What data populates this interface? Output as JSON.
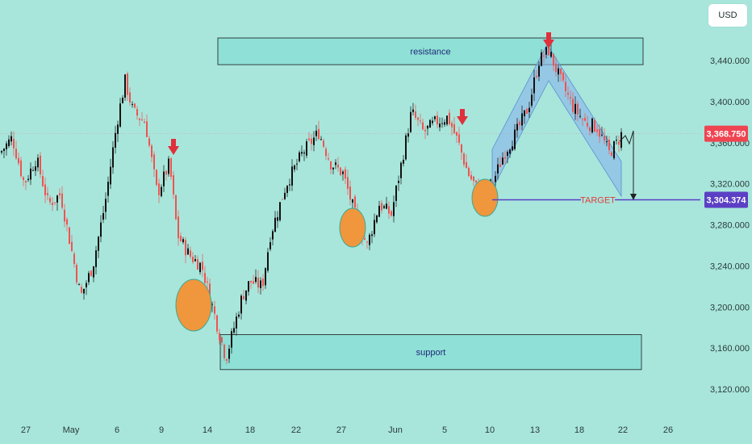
{
  "currency": "USD",
  "colors": {
    "background": "#a8e6dc",
    "up_candle": "#111111",
    "down_candle": "#ef5350",
    "zone_fill": "#8fe0d6",
    "zone_border": "#1a1a1a",
    "circle": "#f0963c",
    "arrow": "#e0303a",
    "channel": "#8ab8e8",
    "target_line": "#5b3fc4",
    "current_price_bg": "#ef4451",
    "target_price_bg": "#5b3fc4"
  },
  "chart_data": {
    "type": "candlestick",
    "y_ticks": [
      "3,440.000",
      "3,400.000",
      "3,360.000",
      "3,320.000",
      "3,280.000",
      "3,240.000",
      "3,200.000",
      "3,160.000",
      "3,120.000"
    ],
    "y_tick_values": [
      3440,
      3400,
      3360,
      3320,
      3280,
      3240,
      3200,
      3160,
      3120
    ],
    "ylim": [
      3108,
      3468
    ],
    "x_ticks": [
      "27",
      "May",
      "6",
      "9",
      "14",
      "18",
      "22",
      "27",
      "Jun",
      "5",
      "10",
      "13",
      "18",
      "22",
      "26"
    ],
    "current_price": 3368.75,
    "current_price_label": "3,368.750",
    "target_price": 3304.374,
    "target_price_label": "3,304.374",
    "target_label": "TARGET",
    "zones": [
      {
        "name": "resistance",
        "label": "resistance",
        "low": 3436,
        "high": 3462
      },
      {
        "name": "support",
        "label": "support",
        "low": 3139,
        "high": 3173
      }
    ],
    "close_path": [
      [
        0,
        3350
      ],
      [
        15,
        3365
      ],
      [
        30,
        3320
      ],
      [
        45,
        3345
      ],
      [
        60,
        3300
      ],
      [
        75,
        3310
      ],
      [
        90,
        3250
      ],
      [
        100,
        3210
      ],
      [
        115,
        3240
      ],
      [
        130,
        3300
      ],
      [
        145,
        3380
      ],
      [
        155,
        3420
      ],
      [
        165,
        3390
      ],
      [
        180,
        3380
      ],
      [
        195,
        3310
      ],
      [
        210,
        3340
      ],
      [
        220,
        3270
      ],
      [
        235,
        3250
      ],
      [
        250,
        3240
      ],
      [
        265,
        3195
      ],
      [
        280,
        3150
      ],
      [
        300,
        3210
      ],
      [
        310,
        3225
      ],
      [
        325,
        3220
      ],
      [
        335,
        3270
      ],
      [
        355,
        3320
      ],
      [
        375,
        3350
      ],
      [
        395,
        3370
      ],
      [
        410,
        3340
      ],
      [
        425,
        3330
      ],
      [
        440,
        3290
      ],
      [
        455,
        3260
      ],
      [
        470,
        3300
      ],
      [
        485,
        3290
      ],
      [
        500,
        3350
      ],
      [
        510,
        3390
      ],
      [
        525,
        3370
      ],
      [
        540,
        3380
      ],
      [
        555,
        3385
      ],
      [
        568,
        3360
      ],
      [
        580,
        3330
      ],
      [
        595,
        3310
      ],
      [
        610,
        3320
      ],
      [
        625,
        3350
      ],
      [
        640,
        3370
      ],
      [
        655,
        3395
      ],
      [
        668,
        3440
      ],
      [
        680,
        3450
      ],
      [
        695,
        3420
      ],
      [
        710,
        3395
      ],
      [
        725,
        3380
      ],
      [
        740,
        3375
      ],
      [
        755,
        3350
      ],
      [
        765,
        3360
      ],
      [
        770,
        3368
      ]
    ]
  }
}
